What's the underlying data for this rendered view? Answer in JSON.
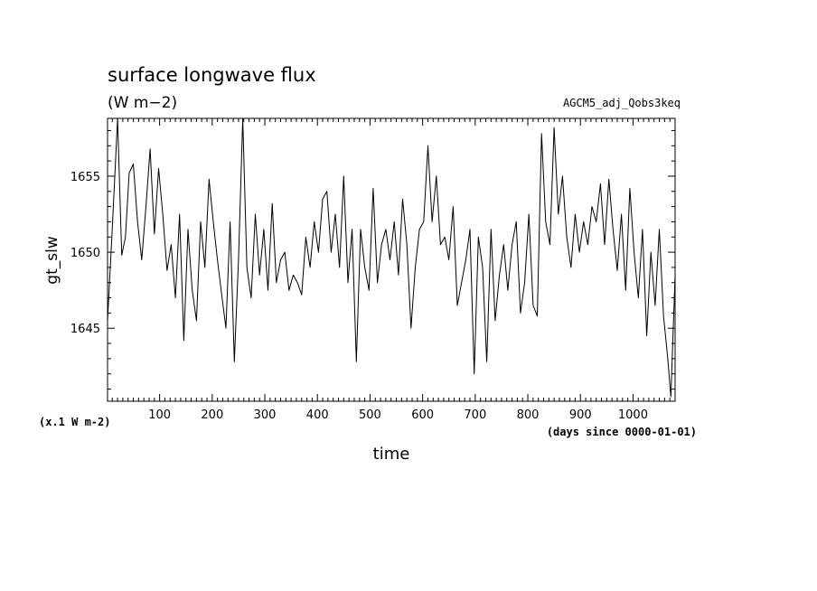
{
  "chart_data": {
    "type": "line",
    "title": "surface longwave flux",
    "units": "(W m−2)",
    "experiment": "AGCM5_adj_Qobs3keq",
    "ylabel": "gt_slw",
    "xlabel": "time",
    "y_scale_note": "(x.1 W m-2)",
    "x_unit_note": "(days since 0000-01-01)",
    "xlim": [
      1,
      1080
    ],
    "ylim": [
      1640.2,
      1658.8
    ],
    "x_ticks": [
      100,
      200,
      300,
      400,
      500,
      600,
      700,
      800,
      900,
      1000
    ],
    "y_ticks": [
      1645,
      1650,
      1655
    ],
    "series": [
      {
        "x": [
          1,
          10,
          20,
          28,
          35,
          42,
          50,
          58,
          66,
          74,
          82,
          90,
          98,
          106,
          114,
          122,
          130,
          138,
          146,
          154,
          162,
          170,
          178,
          186,
          194,
          202,
          210,
          218,
          226,
          234,
          242,
          250,
          258,
          266,
          274,
          282,
          290,
          298,
          306,
          314,
          322,
          330,
          338,
          346,
          354,
          362,
          370,
          378,
          386,
          394,
          402,
          410,
          418,
          426,
          434,
          442,
          450,
          458,
          466,
          474,
          482,
          490,
          498,
          506,
          514,
          522,
          530,
          538,
          546,
          554,
          562,
          570,
          578,
          586,
          594,
          602,
          610,
          618,
          626,
          634,
          642,
          650,
          658,
          666,
          674,
          682,
          690,
          698,
          706,
          714,
          722,
          730,
          738,
          746,
          754,
          762,
          770,
          778,
          786,
          794,
          802,
          810,
          818,
          826,
          834,
          842,
          850,
          858,
          866,
          874,
          882,
          890,
          898,
          906,
          914,
          922,
          930,
          938,
          946,
          954,
          962,
          970,
          978,
          986,
          994,
          1002,
          1010,
          1018,
          1026,
          1034,
          1042,
          1050,
          1058,
          1066,
          1072,
          1080
        ],
        "y": [
          1645.5,
          1651.5,
          1658.8,
          1649.8,
          1651.0,
          1655.2,
          1655.8,
          1652.0,
          1649.5,
          1653.0,
          1656.8,
          1651.2,
          1655.5,
          1652.5,
          1648.8,
          1650.5,
          1647.0,
          1652.5,
          1644.2,
          1651.5,
          1647.5,
          1645.5,
          1652.0,
          1649.0,
          1654.8,
          1652.0,
          1649.5,
          1647.2,
          1645.0,
          1652.0,
          1642.8,
          1649.5,
          1658.8,
          1649.0,
          1647.0,
          1652.5,
          1648.5,
          1651.5,
          1647.5,
          1653.2,
          1648.0,
          1649.5,
          1650.0,
          1647.5,
          1648.5,
          1648.0,
          1647.2,
          1651.0,
          1649.0,
          1652.0,
          1650.0,
          1653.5,
          1654.0,
          1650.0,
          1652.5,
          1649.0,
          1655.0,
          1648.0,
          1651.5,
          1642.8,
          1651.5,
          1649.0,
          1647.5,
          1654.2,
          1648.0,
          1650.5,
          1651.5,
          1649.5,
          1652.0,
          1648.5,
          1653.5,
          1650.5,
          1645.0,
          1649.0,
          1651.5,
          1652.0,
          1657.0,
          1652.0,
          1655.0,
          1650.5,
          1651.0,
          1649.5,
          1653.0,
          1646.5,
          1648.0,
          1649.5,
          1651.5,
          1642.0,
          1651.0,
          1649.0,
          1642.8,
          1651.5,
          1645.5,
          1648.5,
          1650.5,
          1647.5,
          1650.5,
          1652.0,
          1646.0,
          1648.0,
          1652.5,
          1646.5,
          1645.8,
          1657.8,
          1652.0,
          1650.5,
          1658.2,
          1652.5,
          1655.0,
          1651.0,
          1649.0,
          1652.5,
          1650.0,
          1652.0,
          1650.5,
          1653.0,
          1652.0,
          1654.5,
          1650.5,
          1654.8,
          1651.5,
          1648.8,
          1652.5,
          1647.5,
          1654.2,
          1650.0,
          1647.0,
          1651.5,
          1644.5,
          1650.0,
          1646.5,
          1651.5,
          1645.8,
          1643.0,
          1640.5,
          1648.5
        ]
      }
    ]
  }
}
